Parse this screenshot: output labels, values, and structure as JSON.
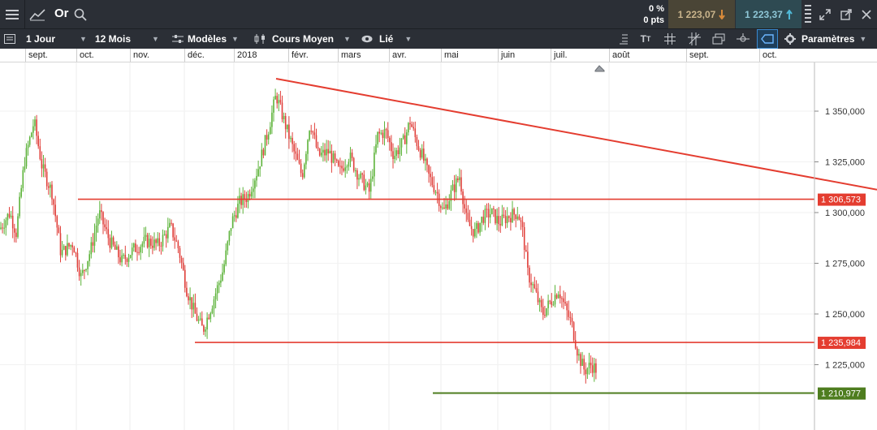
{
  "instrument": "Or",
  "change": {
    "pct": "0 %",
    "pts": "0 pts"
  },
  "bid": "1 223,07",
  "ask": "1 223,37",
  "toolbar": {
    "interval": "1 Jour",
    "range": "12 Mois",
    "templates": "Modèles",
    "price_type": "Cours Moyen",
    "link": "Lié",
    "settings": "Paramètres"
  },
  "colors": {
    "up": "#5db33a",
    "down": "#e0403b",
    "level": "#e43d30",
    "support": "#4e7d1f"
  },
  "chart_data": {
    "type": "candlestick",
    "x_axis_labels": [
      "sept.",
      "oct.",
      "nov.",
      "déc.",
      "2018",
      "févr.",
      "mars",
      "avr.",
      "mai",
      "juin",
      "juil.",
      "août",
      "sept.",
      "oct."
    ],
    "y_ticks": [
      "1 350,000",
      "1 325,000",
      "1 300,000",
      "1 275,000",
      "1 250,000",
      "1 225,000"
    ],
    "ylim": [
      1201,
      1370
    ],
    "price_levels": [
      {
        "label": "1 306,573",
        "value": 1306.573,
        "color": "#e43d30"
      },
      {
        "label": "1 235,984",
        "value": 1235.984,
        "color": "#e43d30"
      },
      {
        "label": "1 210,977",
        "value": 1210.977,
        "color": "#4e7d1f"
      }
    ],
    "trendline": {
      "from": [
        "late Jan 2018",
        1366
      ],
      "to": [
        "beyond Oct 2018",
        1317
      ],
      "color": "#e43d30"
    },
    "close_path_approx": [
      [
        "sept.",
        1292
      ],
      [
        "mid Sept",
        1345
      ],
      [
        "oct.",
        1280
      ],
      [
        "mid Oct",
        1303
      ],
      [
        "nov.",
        1280
      ],
      [
        "late Nov",
        1290
      ],
      [
        "mid Dec",
        1243
      ],
      [
        "2018",
        1305
      ],
      [
        "late Jan",
        1358
      ],
      [
        "févr.",
        1335
      ],
      [
        "mars",
        1325
      ],
      [
        "avr.",
        1340
      ],
      [
        "mai",
        1312
      ],
      [
        "mid May",
        1318
      ],
      [
        "juin",
        1298
      ],
      [
        "late June",
        1253
      ],
      [
        "juil.",
        1242
      ],
      [
        "mid July",
        1222
      ]
    ]
  }
}
